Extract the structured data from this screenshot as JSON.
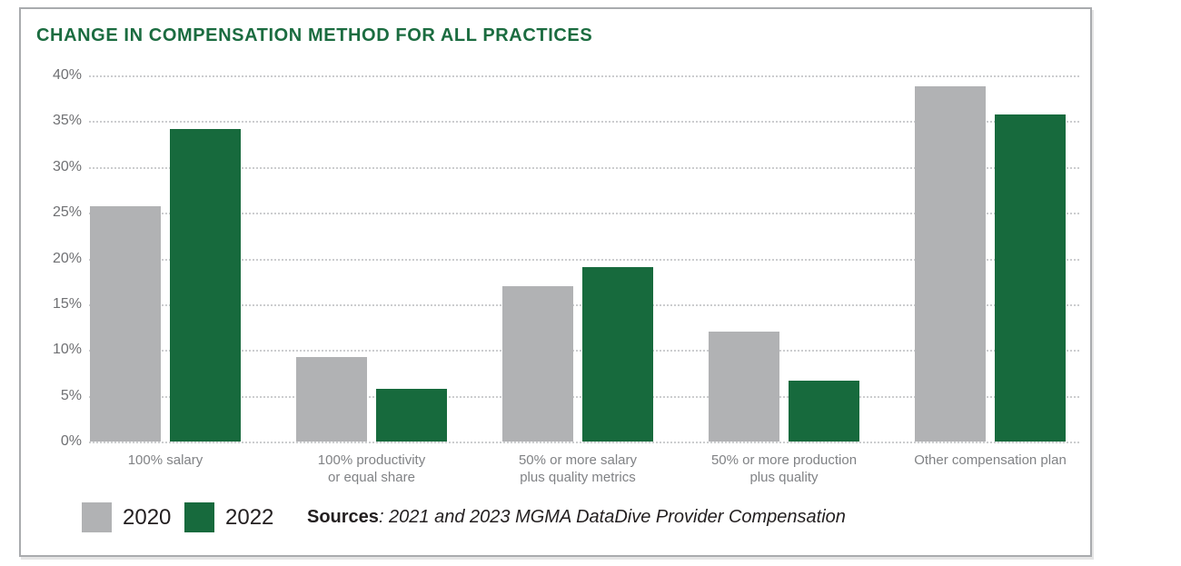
{
  "chart_data": {
    "type": "bar",
    "title": "CHANGE IN COMPENSATION METHOD FOR ALL PRACTICES",
    "categories": [
      "100% salary",
      "100% productivity\nor equal share",
      "50% or more salary\nplus quality metrics",
      "50% or more production\nplus quality",
      "Other compensation plan"
    ],
    "series": [
      {
        "name": "2020",
        "color": "#b1b2b4",
        "values": [
          25.7,
          9.2,
          17,
          12,
          38.8
        ]
      },
      {
        "name": "2022",
        "color": "#176a3d",
        "values": [
          34.1,
          5.8,
          19.1,
          6.7,
          35.7
        ]
      }
    ],
    "xlabel": "",
    "ylabel": "",
    "ylim": [
      0,
      40
    ],
    "ytick_step": 5,
    "ytick_suffix": "%",
    "grid": "horizontal-dotted",
    "legend_position": "bottom-left",
    "title_color": "#1b6c40"
  },
  "source": {
    "label": "Sources",
    "text": ": 2021 and 2023 MGMA DataDive Provider Compensation"
  }
}
